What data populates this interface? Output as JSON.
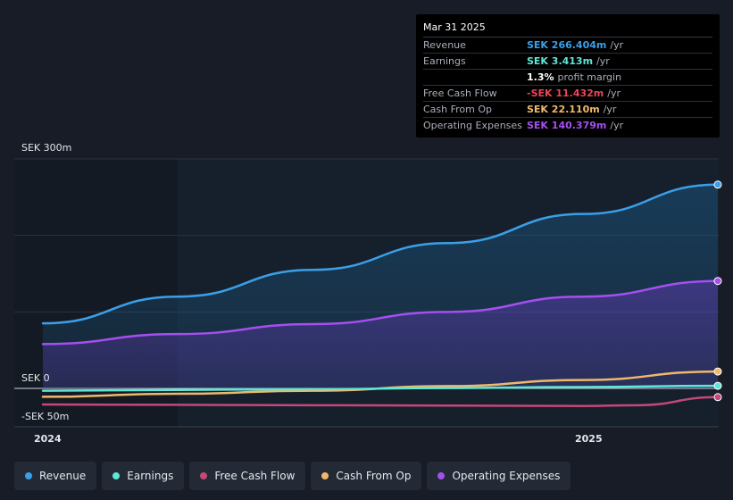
{
  "tooltip": {
    "date": "Mar 31 2025",
    "rows": [
      {
        "label": "Revenue",
        "value": "SEK 266.404m",
        "unit": "/yr",
        "color": "#3b9fe8"
      },
      {
        "label": "Earnings",
        "value": "SEK 3.413m",
        "unit": "/yr",
        "color": "#5ee6d6"
      },
      {
        "label": "",
        "value": "1.3%",
        "unit": "profit margin",
        "color": "#ffffff"
      },
      {
        "label": "Free Cash Flow",
        "value": "-SEK 11.432m",
        "unit": "/yr",
        "color": "#e8455a"
      },
      {
        "label": "Cash From Op",
        "value": "SEK 22.110m",
        "unit": "/yr",
        "color": "#f0b86a"
      },
      {
        "label": "Operating Expenses",
        "value": "SEK 140.379m",
        "unit": "/yr",
        "color": "#a54ff0"
      }
    ]
  },
  "legend": [
    {
      "label": "Revenue",
      "color": "#3b9fe8"
    },
    {
      "label": "Earnings",
      "color": "#5ee6d6"
    },
    {
      "label": "Free Cash Flow",
      "color": "#c4487a"
    },
    {
      "label": "Cash From Op",
      "color": "#f0b86a"
    },
    {
      "label": "Operating Expenses",
      "color": "#a54ff0"
    }
  ],
  "chart_data": {
    "type": "line",
    "y_tick_labels": [
      "SEK 300m",
      "SEK 0",
      "-SEK 50m"
    ],
    "x_tick_labels": [
      "2024",
      "2025"
    ],
    "ylim": [
      -50,
      300
    ],
    "x_range": [
      2024.0,
      2025.25
    ],
    "series": [
      {
        "name": "Revenue",
        "color": "#3b9fe8",
        "x": [
          2024.0,
          2024.25,
          2024.5,
          2024.75,
          2025.0,
          2025.25
        ],
        "values": [
          85,
          120,
          155,
          190,
          228,
          266.4
        ]
      },
      {
        "name": "Operating Expenses",
        "color": "#a54ff0",
        "x": [
          2024.0,
          2024.25,
          2024.5,
          2024.75,
          2025.0,
          2025.25
        ],
        "values": [
          58,
          71,
          84,
          100,
          120,
          140.4
        ]
      },
      {
        "name": "Cash From Op",
        "color": "#f0b86a",
        "x": [
          2024.0,
          2024.25,
          2024.5,
          2024.75,
          2025.0,
          2025.25
        ],
        "values": [
          -11,
          -7,
          -3,
          3,
          11,
          22.1
        ]
      },
      {
        "name": "Earnings",
        "color": "#5ee6d6",
        "x": [
          2024.0,
          2024.25,
          2024.5,
          2024.75,
          2025.0,
          2025.25
        ],
        "values": [
          -3,
          -2,
          -1,
          0.5,
          1.8,
          3.4
        ]
      },
      {
        "name": "Free Cash Flow",
        "color": "#c4487a",
        "x": [
          2024.0,
          2024.25,
          2024.5,
          2024.75,
          2025.0,
          2025.1,
          2025.25
        ],
        "values": [
          -21,
          -21.5,
          -22,
          -22.5,
          -23,
          -22,
          -11.4
        ]
      }
    ]
  }
}
